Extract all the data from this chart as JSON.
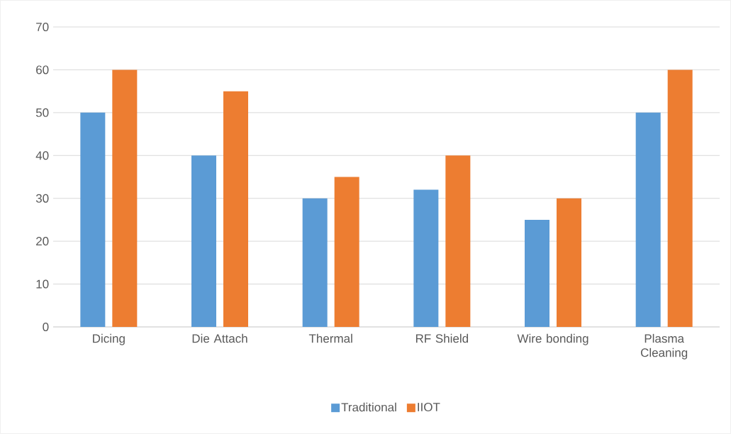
{
  "chart_data": {
    "type": "bar",
    "categories": [
      "Dicing",
      "Die Attach",
      "Thermal",
      "RF Shield",
      "Wire bonding",
      "Plasma Cleaning"
    ],
    "series": [
      {
        "name": "Traditional",
        "color": "#5b9bd5",
        "values": [
          50,
          40,
          30,
          32,
          25,
          50
        ]
      },
      {
        "name": "IIOT",
        "color": "#ed7d31",
        "values": [
          60,
          55,
          35,
          40,
          30,
          60
        ]
      }
    ],
    "ylim": [
      0,
      70
    ],
    "yticks": [
      0,
      10,
      20,
      30,
      40,
      50,
      60,
      70
    ],
    "grid": "y",
    "legend": "bottom"
  }
}
